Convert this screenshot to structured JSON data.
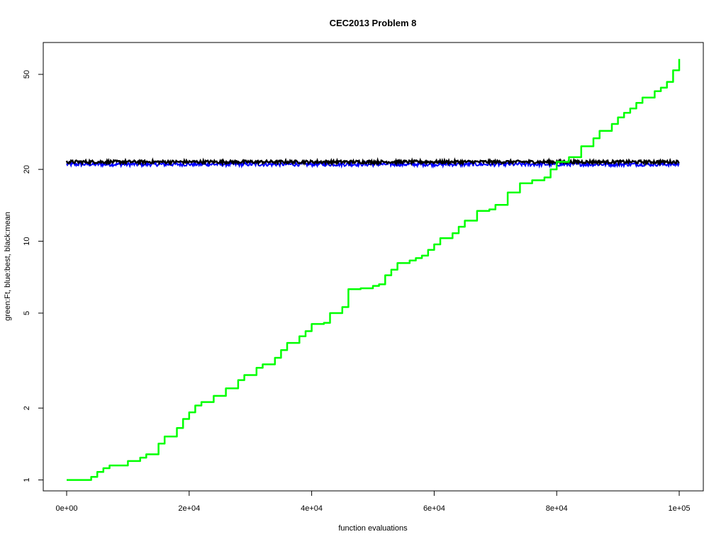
{
  "chart_data": {
    "type": "line",
    "title": "CEC2013 Problem  8",
    "xlabel": "function evaluations",
    "ylabel": "green:Ft, blue:best, black:mean",
    "x_scale": "linear",
    "y_scale": "log",
    "xlim": [
      0,
      100000
    ],
    "ylim": [
      0.9,
      68
    ],
    "x_ticks": [
      0,
      20000,
      40000,
      60000,
      80000,
      100000
    ],
    "x_tick_labels": [
      "0e+00",
      "2e+04",
      "4e+04",
      "6e+04",
      "8e+04",
      "1e+05"
    ],
    "y_ticks": [
      1,
      2,
      5,
      10,
      20,
      50
    ],
    "y_tick_labels": [
      "1",
      "2",
      "5",
      "10",
      "20",
      "50"
    ],
    "grid": false,
    "series": [
      {
        "color": "#00ff00",
        "x": [
          0,
          3500,
          4000,
          5000,
          6000,
          7000,
          9000,
          10000,
          12000,
          13000,
          15000,
          16000,
          18000,
          19000,
          20000,
          21000,
          22000,
          24000,
          26000,
          28000,
          29000,
          31000,
          32000,
          34000,
          35000,
          36000,
          38000,
          39000,
          40000,
          42000,
          43000,
          45000,
          46000,
          48000,
          50000,
          51000,
          52000,
          53000,
          54000,
          56000,
          57000,
          58000,
          59000,
          60000,
          61000,
          63000,
          64000,
          65000,
          67000,
          69000,
          70000,
          72000,
          74000,
          76000,
          78000,
          79000,
          80000,
          82000,
          84000,
          86000,
          87000,
          89000,
          90000,
          91000,
          92000,
          93000,
          94000,
          96000,
          97000,
          98000,
          99000,
          100000
        ],
        "values": [
          1.0,
          1.0,
          1.03,
          1.08,
          1.12,
          1.15,
          1.15,
          1.2,
          1.24,
          1.28,
          1.42,
          1.52,
          1.65,
          1.8,
          1.92,
          2.05,
          2.12,
          2.25,
          2.42,
          2.62,
          2.75,
          2.95,
          3.05,
          3.25,
          3.5,
          3.75,
          4.0,
          4.2,
          4.5,
          4.55,
          5.0,
          5.3,
          6.3,
          6.35,
          6.5,
          6.6,
          7.2,
          7.6,
          8.1,
          8.3,
          8.5,
          8.7,
          9.2,
          9.7,
          10.3,
          10.8,
          11.5,
          12.2,
          13.4,
          13.6,
          14.2,
          16.0,
          17.5,
          18.0,
          18.5,
          20.0,
          21.5,
          22.5,
          25.0,
          27.0,
          29.0,
          31.0,
          33.0,
          34.5,
          36.0,
          38.0,
          40.0,
          42.5,
          44.0,
          46.5,
          52.0,
          58.0
        ]
      },
      {
        "color": "#0000ff",
        "baseline": 21.0
      },
      {
        "color": "#000000",
        "baseline": 21.5
      }
    ]
  }
}
